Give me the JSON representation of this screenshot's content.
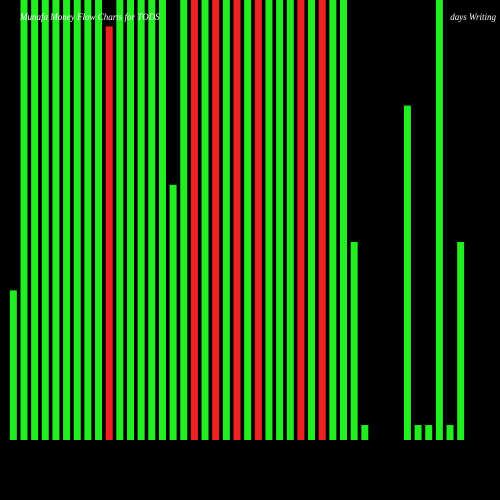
{
  "chart_data": {
    "type": "bar",
    "title": "Munafa Money Flow Charts for TODS",
    "annotation": "days Writing",
    "categories": [
      null,
      null,
      null,
      null,
      null,
      null,
      null,
      null,
      null,
      null,
      null,
      null,
      null,
      null,
      null,
      null,
      null,
      null,
      null,
      null,
      null,
      null,
      null,
      null,
      null,
      null,
      null,
      null,
      null,
      null,
      null,
      null,
      null,
      null,
      null,
      null,
      null,
      null,
      null,
      null,
      null,
      null,
      null
    ],
    "values": [
      34,
      100,
      100,
      100,
      100,
      100,
      100,
      100,
      100,
      94,
      100,
      100,
      100,
      100,
      100,
      58,
      100,
      100,
      100,
      100,
      100,
      100,
      100,
      100,
      100,
      100,
      100,
      100,
      100,
      100,
      100,
      100,
      45,
      3.4,
      0,
      0,
      0,
      76,
      3.4,
      3.4,
      100,
      3.4,
      45
    ],
    "colors": [
      "#22ee22",
      "#22ee22",
      "#22ee22",
      "#22ee22",
      "#22ee22",
      "#22ee22",
      "#22ee22",
      "#22ee22",
      "#22ee22",
      "#ee2222",
      "#22ee22",
      "#22ee22",
      "#22ee22",
      "#22ee22",
      "#22ee22",
      "#22ee22",
      "#22ee22",
      "#ee2222",
      "#22ee22",
      "#ee2222",
      "#22ee22",
      "#ee2222",
      "#22ee22",
      "#ee2222",
      "#22ee22",
      "#22ee22",
      "#22ee22",
      "#ee2222",
      "#22ee22",
      "#ee2222",
      "#22ee22",
      "#22ee22",
      "#22ee22",
      "#22ee22",
      "#22ee22",
      "#22ee22",
      "#22ee22",
      "#22ee22",
      "#22ee22",
      "#22ee22",
      "#22ee22",
      "#22ee22",
      "#22ee22"
    ],
    "ylim": [
      0,
      100
    ]
  }
}
